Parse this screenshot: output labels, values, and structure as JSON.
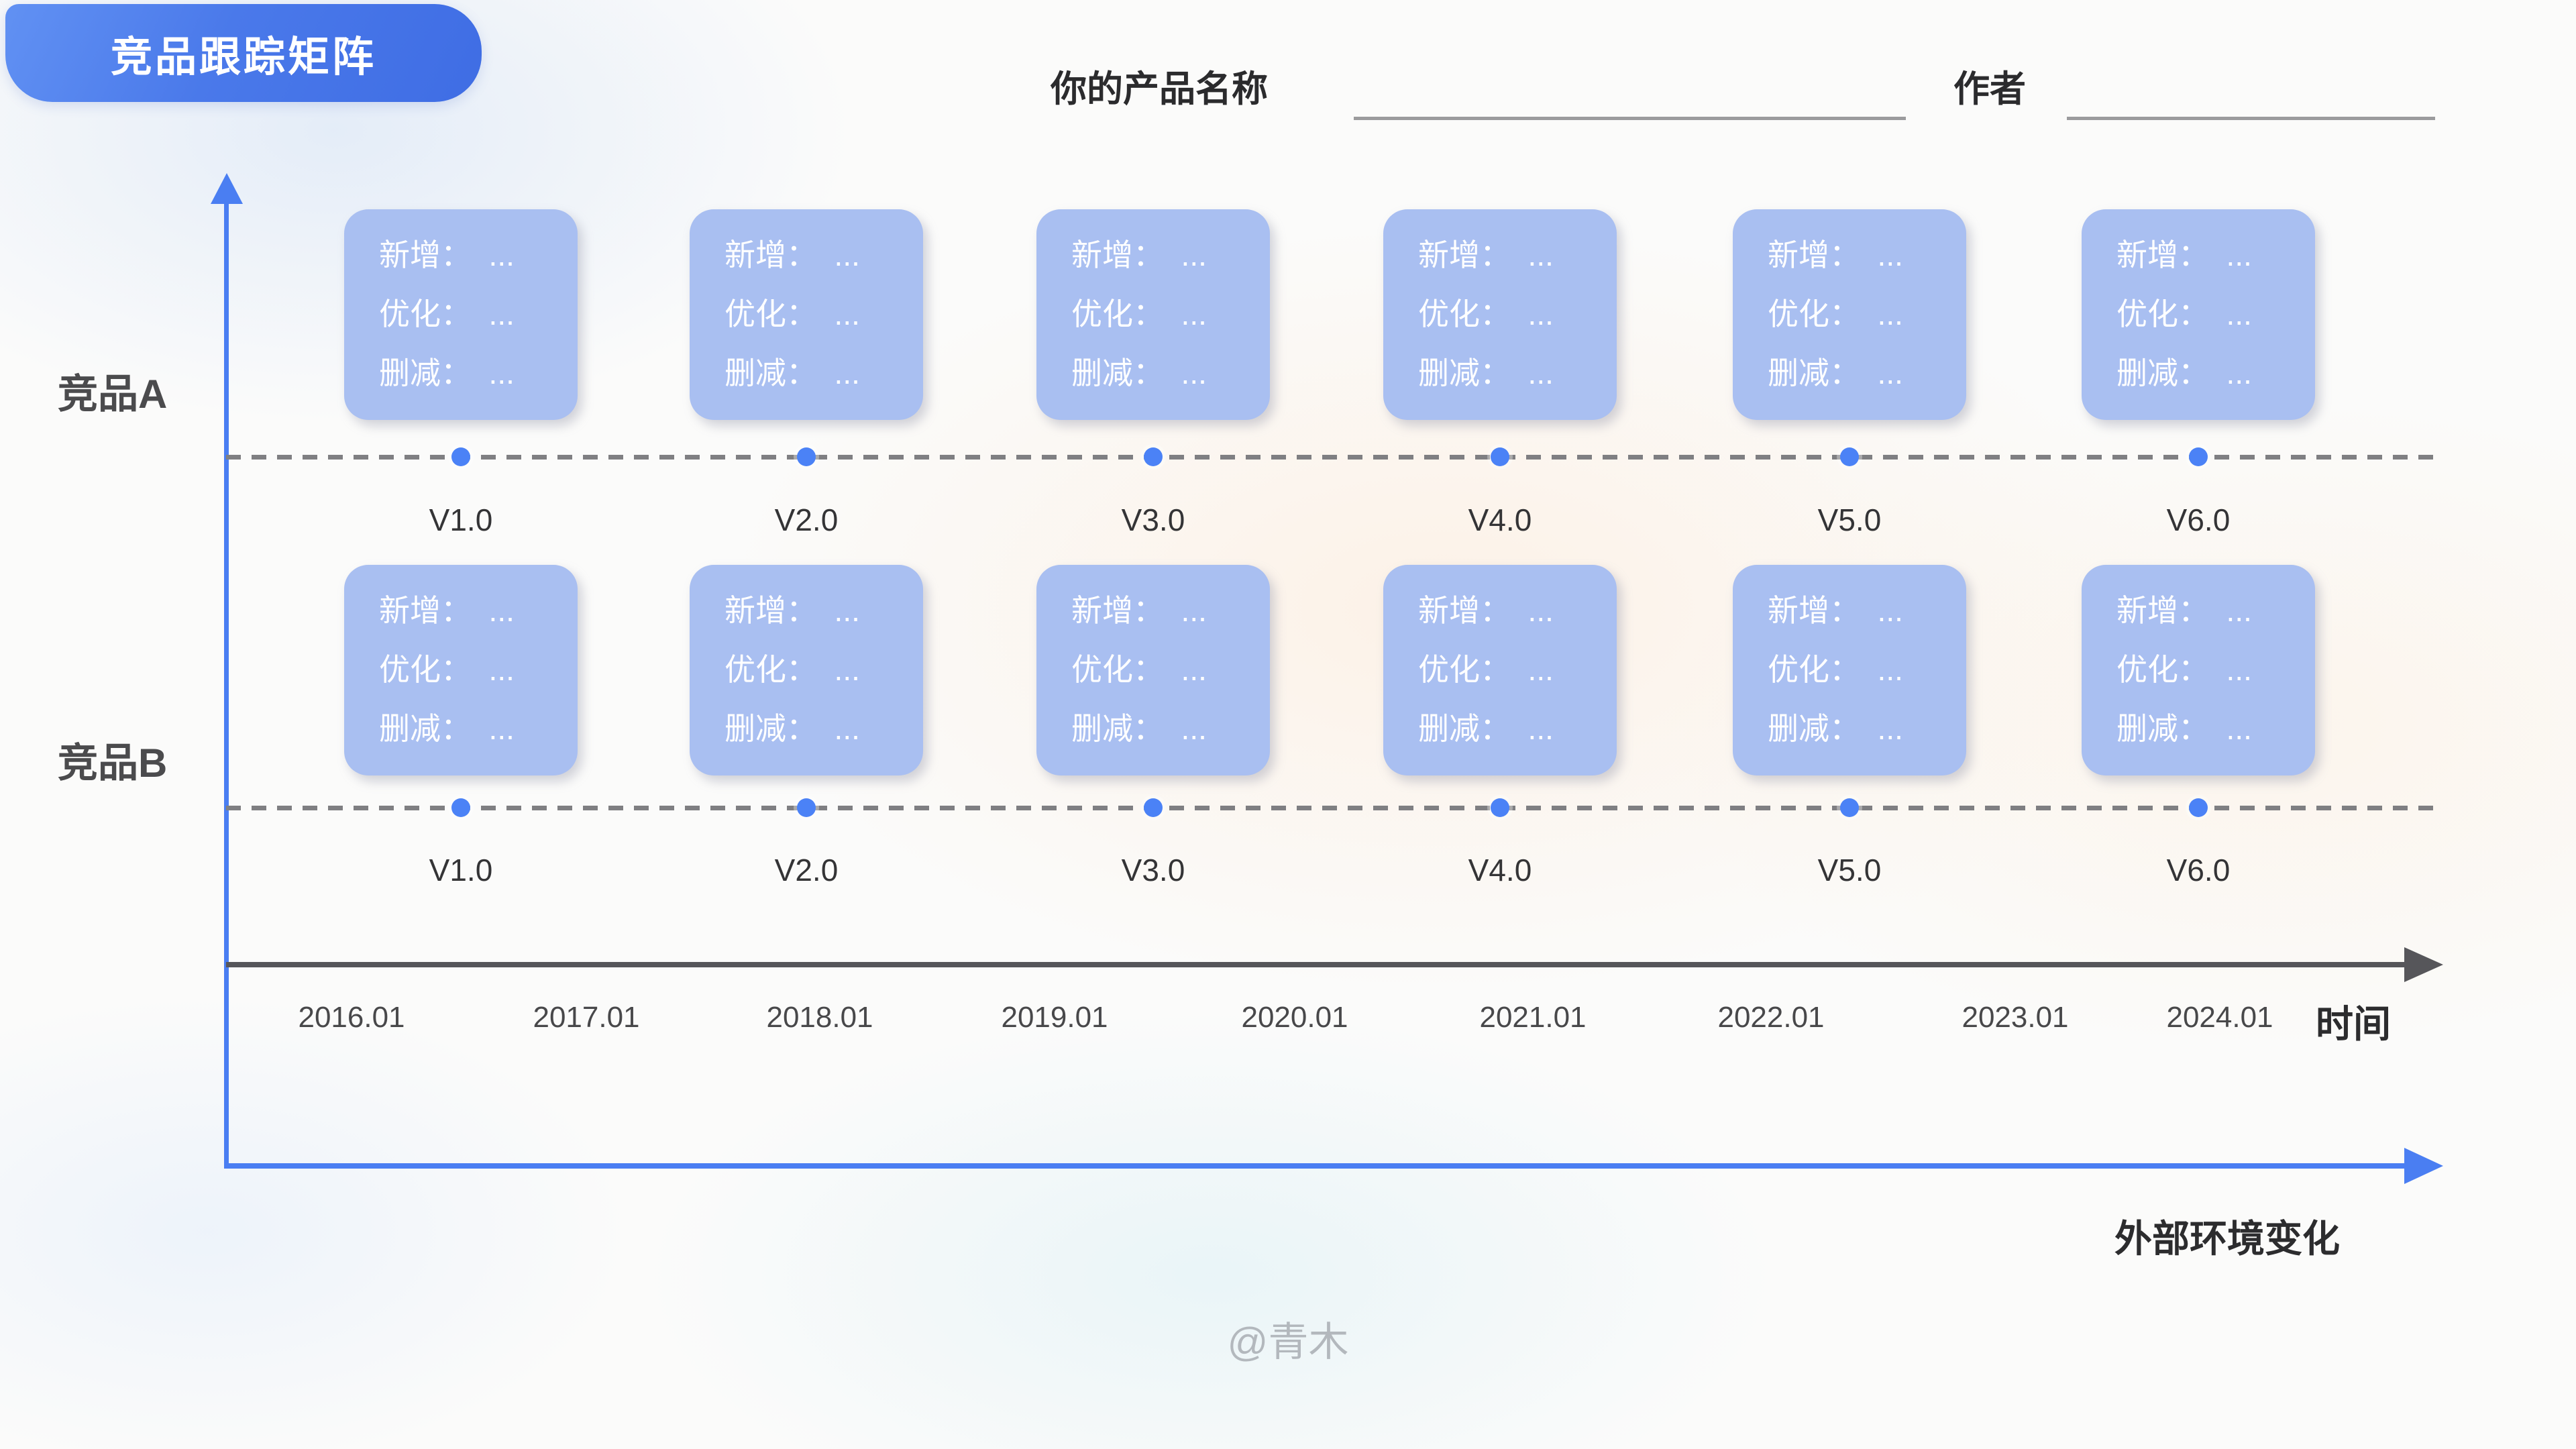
{
  "badge": {
    "title": "竞品跟踪矩阵"
  },
  "header": {
    "product_label": "你的产品名称",
    "product_value": "",
    "author_label": "作者",
    "author_value": ""
  },
  "rows": [
    {
      "name": "竞品A",
      "versions": [
        {
          "version": "V1.0",
          "lines": [
            "新增：  ...",
            "优化：  ...",
            "删减：  ..."
          ]
        },
        {
          "version": "V2.0",
          "lines": [
            "新增：  ...",
            "优化：  ...",
            "删减：  ..."
          ]
        },
        {
          "version": "V3.0",
          "lines": [
            "新增：  ...",
            "优化：  ...",
            "删减：  ..."
          ]
        },
        {
          "version": "V4.0",
          "lines": [
            "新增：  ...",
            "优化：  ...",
            "删减：  ..."
          ]
        },
        {
          "version": "V5.0",
          "lines": [
            "新增：  ...",
            "优化：  ...",
            "删减：  ..."
          ]
        },
        {
          "version": "V6.0",
          "lines": [
            "新增：  ...",
            "优化：  ...",
            "删减：  ..."
          ]
        }
      ]
    },
    {
      "name": "竞品B",
      "versions": [
        {
          "version": "V1.0",
          "lines": [
            "新增：  ...",
            "优化：  ...",
            "删减：  ..."
          ]
        },
        {
          "version": "V2.0",
          "lines": [
            "新增：  ...",
            "优化：  ...",
            "删减：  ..."
          ]
        },
        {
          "version": "V3.0",
          "lines": [
            "新增：  ...",
            "优化：  ...",
            "删减：  ..."
          ]
        },
        {
          "version": "V4.0",
          "lines": [
            "新增：  ...",
            "优化：  ...",
            "删减：  ..."
          ]
        },
        {
          "version": "V5.0",
          "lines": [
            "新增：  ...",
            "优化：  ...",
            "删减：  ..."
          ]
        },
        {
          "version": "V6.0",
          "lines": [
            "新增：  ...",
            "优化：  ...",
            "删减：  ..."
          ]
        }
      ]
    }
  ],
  "timeline": {
    "ticks": [
      "2016.01",
      "2017.01",
      "2018.01",
      "2019.01",
      "2020.01",
      "2021.01",
      "2022.01",
      "2023.01",
      "2024.01"
    ],
    "axis_label": "时间"
  },
  "external_axis": {
    "label": "外部环境变化"
  },
  "watermark": {
    "text": "@青木"
  },
  "colors": {
    "primary_blue": "#4a7ef2",
    "dot_blue": "#4b82f6",
    "card_blue": "#a9bff1",
    "axis_dark": "#56565a",
    "dash_gray": "#7f7f82",
    "badge_gradient_start": "#6191f3",
    "badge_gradient_end": "#3f6de4"
  }
}
